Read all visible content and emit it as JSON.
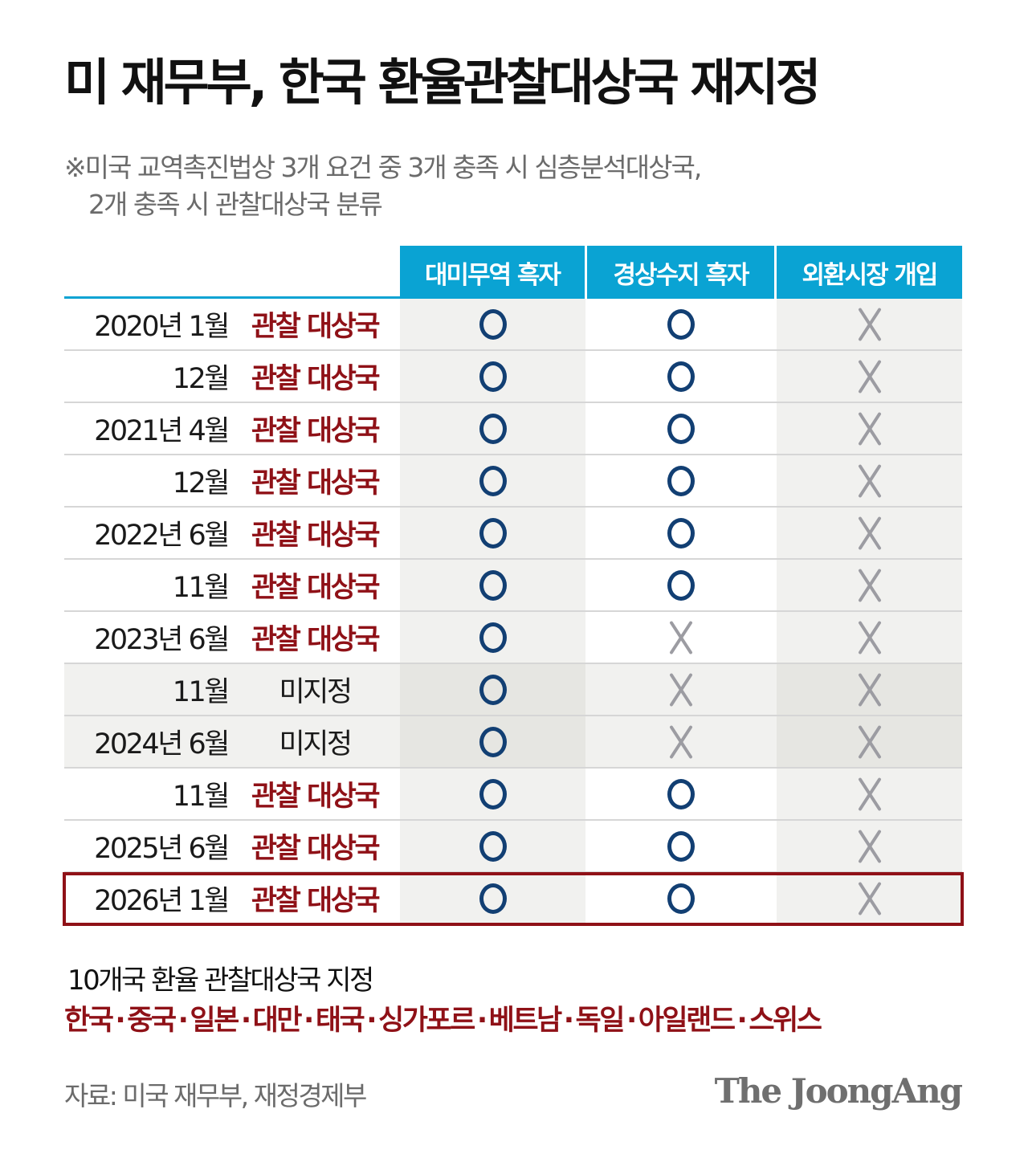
{
  "header": {
    "title": "미 재무부, 한국 환율관찰대상국 재지정",
    "note_line1": "※미국 교역촉진법상 3개 요건 중 3개 충족 시 심층분석대상국,",
    "note_line2": "2개 충족 시 관찰대상국 분류"
  },
  "table": {
    "columns": [
      "대미무역 흑자",
      "경상수지 흑자",
      "외환시장 개입"
    ],
    "rows": [
      {
        "date": "2020년 1월",
        "status": "관찰 대상국",
        "marks": [
          "O",
          "O",
          "X"
        ]
      },
      {
        "date": "12월",
        "status": "관찰 대상국",
        "marks": [
          "O",
          "O",
          "X"
        ]
      },
      {
        "date": "2021년 4월",
        "status": "관찰 대상국",
        "marks": [
          "O",
          "O",
          "X"
        ]
      },
      {
        "date": "12월",
        "status": "관찰 대상국",
        "marks": [
          "O",
          "O",
          "X"
        ]
      },
      {
        "date": "2022년 6월",
        "status": "관찰 대상국",
        "marks": [
          "O",
          "O",
          "X"
        ]
      },
      {
        "date": "11월",
        "status": "관찰 대상국",
        "marks": [
          "O",
          "O",
          "X"
        ]
      },
      {
        "date": "2023년 6월",
        "status": "관찰 대상국",
        "marks": [
          "O",
          "X",
          "X"
        ]
      },
      {
        "date": "11월",
        "status": "미지정",
        "marks": [
          "O",
          "X",
          "X"
        ]
      },
      {
        "date": "2024년 6월",
        "status": "미지정",
        "marks": [
          "O",
          "X",
          "X"
        ]
      },
      {
        "date": "11월",
        "status": "관찰 대상국",
        "marks": [
          "O",
          "O",
          "X"
        ]
      },
      {
        "date": "2025년 6월",
        "status": "관찰 대상국",
        "marks": [
          "O",
          "O",
          "X"
        ]
      },
      {
        "date": "2026년 1월",
        "status": "관찰 대상국",
        "marks": [
          "O",
          "O",
          "X"
        ],
        "highlighted": true
      }
    ]
  },
  "summary": {
    "title": "10개국 환율 관찰대상국 지정",
    "countries": [
      "한국",
      "중국",
      "일본",
      "대만",
      "태국",
      "싱가포르",
      "베트남",
      "독일",
      "아일랜드",
      "스위스"
    ],
    "separator": "·"
  },
  "footer": {
    "source": "자료: 미국 재무부, 재정경제부",
    "logo": "The JoongAng"
  },
  "colors": {
    "header_cyan": "#0aa3d3",
    "accent_red": "#8f1117",
    "circle_navy": "#123f73",
    "cross_gray": "#9c9ca2",
    "cell_gray": "#f1f1ef"
  }
}
